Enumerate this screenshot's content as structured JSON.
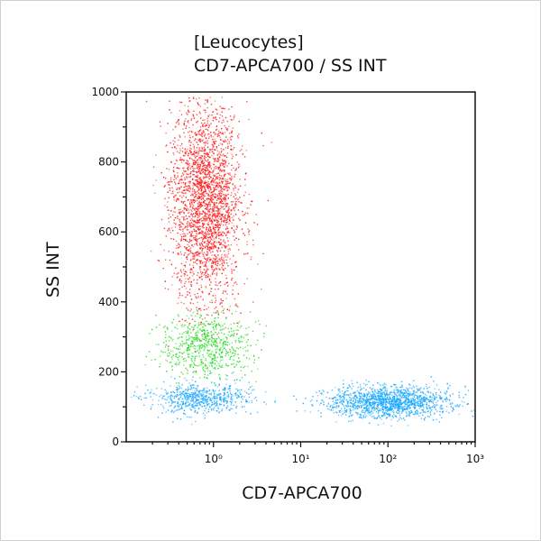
{
  "chart_data": {
    "type": "scatter",
    "title": "[Leucocytes]",
    "subtitle": "CD7-APCA700 / SS INT",
    "xlabel": "CD7-APCA700",
    "ylabel": "SS INT",
    "xscale": "log",
    "xlim": [
      0.1,
      1000
    ],
    "ylim": [
      0,
      1000
    ],
    "xticks": [
      {
        "value": 1,
        "label": "10⁰"
      },
      {
        "value": 10,
        "label": "10¹"
      },
      {
        "value": 100,
        "label": "10²"
      },
      {
        "value": 1000,
        "label": "10³"
      }
    ],
    "yticks": [
      0,
      200,
      400,
      600,
      800,
      1000
    ],
    "grid": false,
    "populations": [
      {
        "color": "#ff1a1a",
        "x_center": 0.8,
        "x_log_spread": 0.2,
        "y_center": 680,
        "y_spread": 140,
        "count": 2600
      },
      {
        "color": "#22dd22",
        "x_center": 0.8,
        "x_log_spread": 0.25,
        "y_center": 275,
        "y_spread": 45,
        "count": 700
      },
      {
        "color": "#1aa8ff",
        "x_center": 0.7,
        "x_log_spread": 0.3,
        "y_center": 125,
        "y_spread": 22,
        "count": 650
      },
      {
        "color": "#1aa8ff",
        "x_center": 100,
        "x_log_spread": 0.35,
        "y_center": 115,
        "y_spread": 22,
        "count": 1500
      }
    ]
  }
}
